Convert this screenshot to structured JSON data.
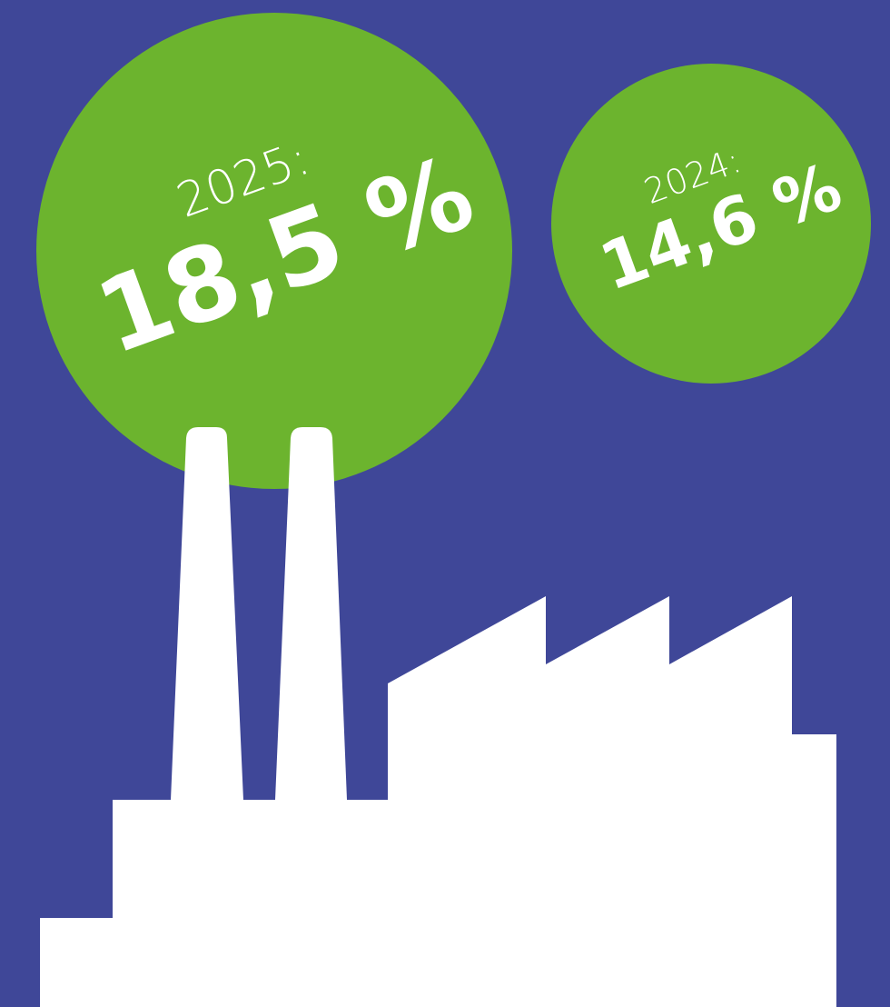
{
  "bubbles": [
    {
      "year": "2025:",
      "value": "18,5 %"
    },
    {
      "year": "2024:",
      "value": "14,6 %"
    }
  ]
}
